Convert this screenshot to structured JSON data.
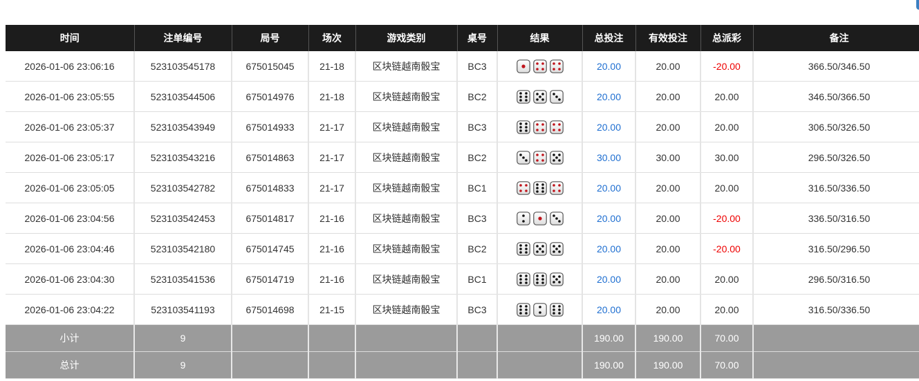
{
  "headers": [
    "时间",
    "注单编号",
    "局号",
    "场次",
    "游戏类别",
    "桌号",
    "结果",
    "总投注",
    "有效投注",
    "总派彩",
    "备注"
  ],
  "rows": [
    {
      "time": "2026-01-06 23:06:16",
      "bet_id": "523103545178",
      "round": "675015045",
      "session": "21-18",
      "game": "区块链越南骰宝",
      "table": "BC3",
      "dice": [
        1,
        4,
        4
      ],
      "bet": "20.00",
      "valid": "20.00",
      "payout": "-20.00",
      "note": "366.50/346.50"
    },
    {
      "time": "2026-01-06 23:05:55",
      "bet_id": "523103544506",
      "round": "675014976",
      "session": "21-18",
      "game": "区块链越南骰宝",
      "table": "BC2",
      "dice": [
        6,
        5,
        3
      ],
      "bet": "20.00",
      "valid": "20.00",
      "payout": "20.00",
      "note": "346.50/366.50"
    },
    {
      "time": "2026-01-06 23:05:37",
      "bet_id": "523103543949",
      "round": "675014933",
      "session": "21-17",
      "game": "区块链越南骰宝",
      "table": "BC3",
      "dice": [
        6,
        4,
        4
      ],
      "bet": "20.00",
      "valid": "20.00",
      "payout": "20.00",
      "note": "306.50/326.50"
    },
    {
      "time": "2026-01-06 23:05:17",
      "bet_id": "523103543216",
      "round": "675014863",
      "session": "21-17",
      "game": "区块链越南骰宝",
      "table": "BC2",
      "dice": [
        3,
        4,
        5
      ],
      "bet": "30.00",
      "valid": "30.00",
      "payout": "30.00",
      "note": "296.50/326.50"
    },
    {
      "time": "2026-01-06 23:05:05",
      "bet_id": "523103542782",
      "round": "675014833",
      "session": "21-17",
      "game": "区块链越南骰宝",
      "table": "BC1",
      "dice": [
        4,
        6,
        4
      ],
      "bet": "20.00",
      "valid": "20.00",
      "payout": "20.00",
      "note": "316.50/336.50"
    },
    {
      "time": "2026-01-06 23:04:56",
      "bet_id": "523103542453",
      "round": "675014817",
      "session": "21-16",
      "game": "区块链越南骰宝",
      "table": "BC3",
      "dice": [
        2,
        1,
        3
      ],
      "bet": "20.00",
      "valid": "20.00",
      "payout": "-20.00",
      "note": "336.50/316.50"
    },
    {
      "time": "2026-01-06 23:04:46",
      "bet_id": "523103542180",
      "round": "675014745",
      "session": "21-16",
      "game": "区块链越南骰宝",
      "table": "BC2",
      "dice": [
        6,
        5,
        5
      ],
      "bet": "20.00",
      "valid": "20.00",
      "payout": "-20.00",
      "note": "316.50/296.50"
    },
    {
      "time": "2026-01-06 23:04:30",
      "bet_id": "523103541536",
      "round": "675014719",
      "session": "21-16",
      "game": "区块链越南骰宝",
      "table": "BC1",
      "dice": [
        6,
        6,
        5
      ],
      "bet": "20.00",
      "valid": "20.00",
      "payout": "20.00",
      "note": "296.50/316.50"
    },
    {
      "time": "2026-01-06 23:04:22",
      "bet_id": "523103541193",
      "round": "675014698",
      "session": "21-15",
      "game": "区块链越南骰宝",
      "table": "BC3",
      "dice": [
        6,
        2,
        6
      ],
      "bet": "20.00",
      "valid": "20.00",
      "payout": "20.00",
      "note": "316.50/336.50"
    }
  ],
  "subtotal": {
    "label": "小计",
    "count": "9",
    "bet": "190.00",
    "valid": "190.00",
    "payout": "70.00"
  },
  "total": {
    "label": "总计",
    "count": "9",
    "bet": "190.00",
    "valid": "190.00",
    "payout": "70.00"
  },
  "colors": {
    "header_bg": "#1c1c1c",
    "bet_blue": "#1f6fd1",
    "negative_red": "#e00000",
    "summary_bg": "#9b9b9b"
  }
}
